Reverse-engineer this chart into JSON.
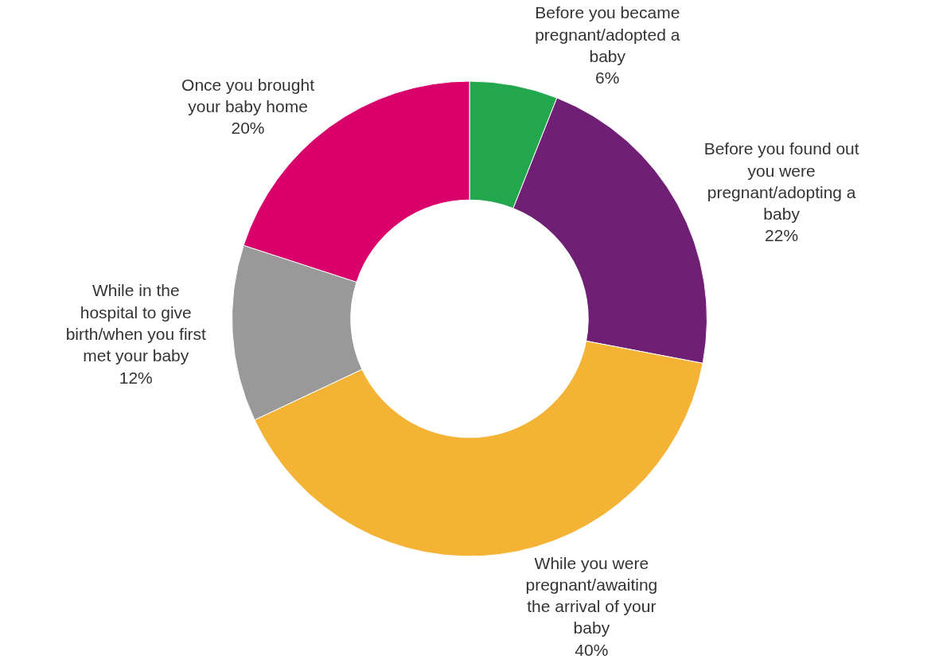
{
  "chart_data": {
    "type": "donut",
    "categories": [
      "Before you became pregnant/adopted a baby",
      "Before you found out you were pregnant/adopting a baby",
      "While you were pregnant/awaiting the arrival of your baby",
      "While in the hospital to give birth/when you first met your baby",
      "Once you brought your baby home"
    ],
    "values": [
      6,
      22,
      40,
      12,
      20
    ],
    "colors": [
      "#22a64e",
      "#6f2075",
      "#f5b335",
      "#999999",
      "#d9006b"
    ],
    "value_labels": [
      "6%",
      "22%",
      "40%",
      "12%",
      "20%"
    ],
    "legend": false
  }
}
